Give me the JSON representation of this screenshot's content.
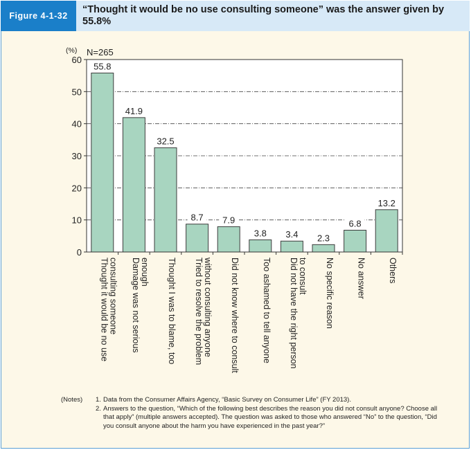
{
  "figure": {
    "label": "Figure 4-1-32",
    "title": "“Thought it would be no use consulting someone” was the answer given by 55.8%"
  },
  "chart_data": {
    "type": "bar",
    "unit_label": "(%)",
    "sample_label": "N=265",
    "ylim": [
      0,
      60
    ],
    "yticks": [
      0,
      10,
      20,
      30,
      40,
      50,
      60
    ],
    "categories": [
      "Thought it would be no use consulting someone",
      "Damage was not serious enough",
      "Thought I was to blame, too",
      "Tried to resolve the problem without consulting anyone",
      "Did not know where to consult",
      "Too ashamed to tell anyone",
      "Did not have the right person to consult",
      "No specific reason",
      "No answer",
      "Others"
    ],
    "category_lines": [
      [
        "Thought it would be no use",
        "consulting someone"
      ],
      [
        "Damage was not serious",
        "enough"
      ],
      [
        "Thought I was to blame, too"
      ],
      [
        "Tried to resolve the problem",
        "without consulting anyone"
      ],
      [
        "Did not know where to consult"
      ],
      [
        "Too ashamed to tell anyone"
      ],
      [
        "Did not have the right person",
        "to consult"
      ],
      [
        "No specific reason"
      ],
      [
        "No answer"
      ],
      [
        "Others"
      ]
    ],
    "values": [
      55.8,
      41.9,
      32.5,
      8.7,
      7.9,
      3.8,
      3.4,
      2.3,
      6.8,
      13.2
    ],
    "value_labels": [
      "55.8",
      "41.9",
      "32.5",
      "8.7",
      "7.9",
      "3.8",
      "3.4",
      "2.3",
      "6.8",
      "13.2"
    ],
    "grid": "dash-dot horizontal",
    "colors": {
      "bar": "#a8d5c0",
      "bar_stroke": "#3c3c3c"
    }
  },
  "notes": {
    "prefix": "(Notes)",
    "items": [
      {
        "num": "1.",
        "text": "Data from the Consumer Affairs Agency, “Basic Survey on Consumer Life” (FY 2013)."
      },
      {
        "num": "2.",
        "text": "Answers to the question, “Which of the following best describes the reason you did not consult anyone? Choose all that apply” (multiple answers accepted). The question was asked to those who answered “No” to the question, “Did you consult anyone about the harm you have experienced in the past year?”"
      }
    ]
  }
}
